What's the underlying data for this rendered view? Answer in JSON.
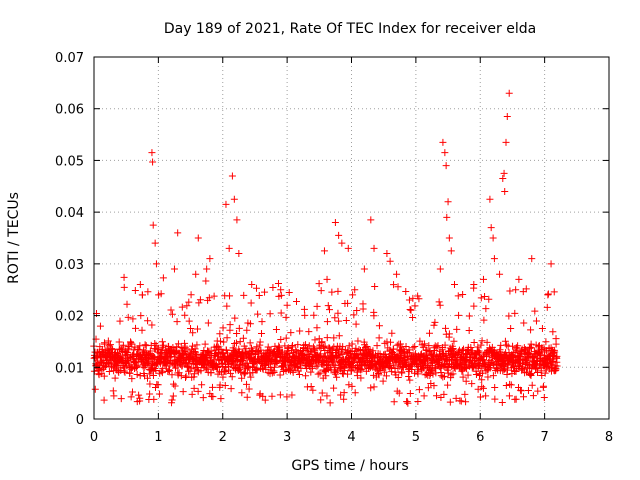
{
  "chart_data": {
    "type": "scatter",
    "title": "Day 189 of 2021, Rate Of TEC Index for receiver elda",
    "xlabel": "GPS time / hours",
    "ylabel": "ROTI / TECUs",
    "xlim": [
      0,
      8
    ],
    "ylim": [
      0,
      0.07
    ],
    "x_ticks": [
      0,
      1,
      2,
      3,
      4,
      5,
      6,
      7,
      8
    ],
    "y_ticks": [
      0,
      0.01,
      0.02,
      0.03,
      0.04,
      0.05,
      0.06,
      0.07
    ],
    "y_tick_labels": [
      "0",
      "0.01",
      "0.02",
      "0.03",
      "0.04",
      "0.05",
      "0.06",
      "0.07"
    ],
    "grid": true,
    "marker": "+",
    "color": "#ff0000",
    "series": [
      {
        "name": "ROTI",
        "points_sampled": true,
        "x_range": [
          0,
          7.2
        ],
        "baseline_band": [
          0.005,
          0.018
        ],
        "x": [
          0.9,
          0.91,
          0.92,
          0.95,
          0.97,
          2.15,
          2.18,
          2.22,
          2.25,
          2.05,
          2.1,
          1.62,
          1.58,
          1.3,
          1.25,
          3.75,
          3.8,
          3.85,
          4.3,
          4.35,
          4.2,
          4.55,
          4.6,
          3.58,
          3.62,
          5.42,
          5.45,
          5.47,
          5.5,
          5.48,
          5.52,
          5.55,
          5.38,
          5.6,
          6.15,
          6.17,
          6.2,
          6.22,
          6.35,
          6.37,
          6.4,
          6.42,
          6.45,
          6.38,
          6.3,
          6.05,
          7.1,
          7.05,
          0.72,
          0.75,
          1.75,
          1.8,
          2.45,
          2.9,
          3.0,
          3.95,
          4.05,
          4.7,
          4.9,
          5.9,
          6.55,
          6.6,
          6.8
        ],
        "y": [
          0.0515,
          0.0497,
          0.0375,
          0.034,
          0.03,
          0.047,
          0.0425,
          0.0385,
          0.032,
          0.0415,
          0.033,
          0.035,
          0.028,
          0.036,
          0.029,
          0.038,
          0.0355,
          0.034,
          0.0385,
          0.033,
          0.029,
          0.032,
          0.0305,
          0.0325,
          0.027,
          0.0535,
          0.0515,
          0.049,
          0.042,
          0.039,
          0.035,
          0.0325,
          0.029,
          0.026,
          0.0425,
          0.037,
          0.035,
          0.031,
          0.0465,
          0.0475,
          0.0535,
          0.0585,
          0.063,
          0.044,
          0.028,
          0.027,
          0.03,
          0.024,
          0.026,
          0.024,
          0.029,
          0.031,
          0.026,
          0.025,
          0.022,
          0.033,
          0.025,
          0.028,
          0.023,
          0.026,
          0.025,
          0.027,
          0.031
        ]
      }
    ]
  }
}
